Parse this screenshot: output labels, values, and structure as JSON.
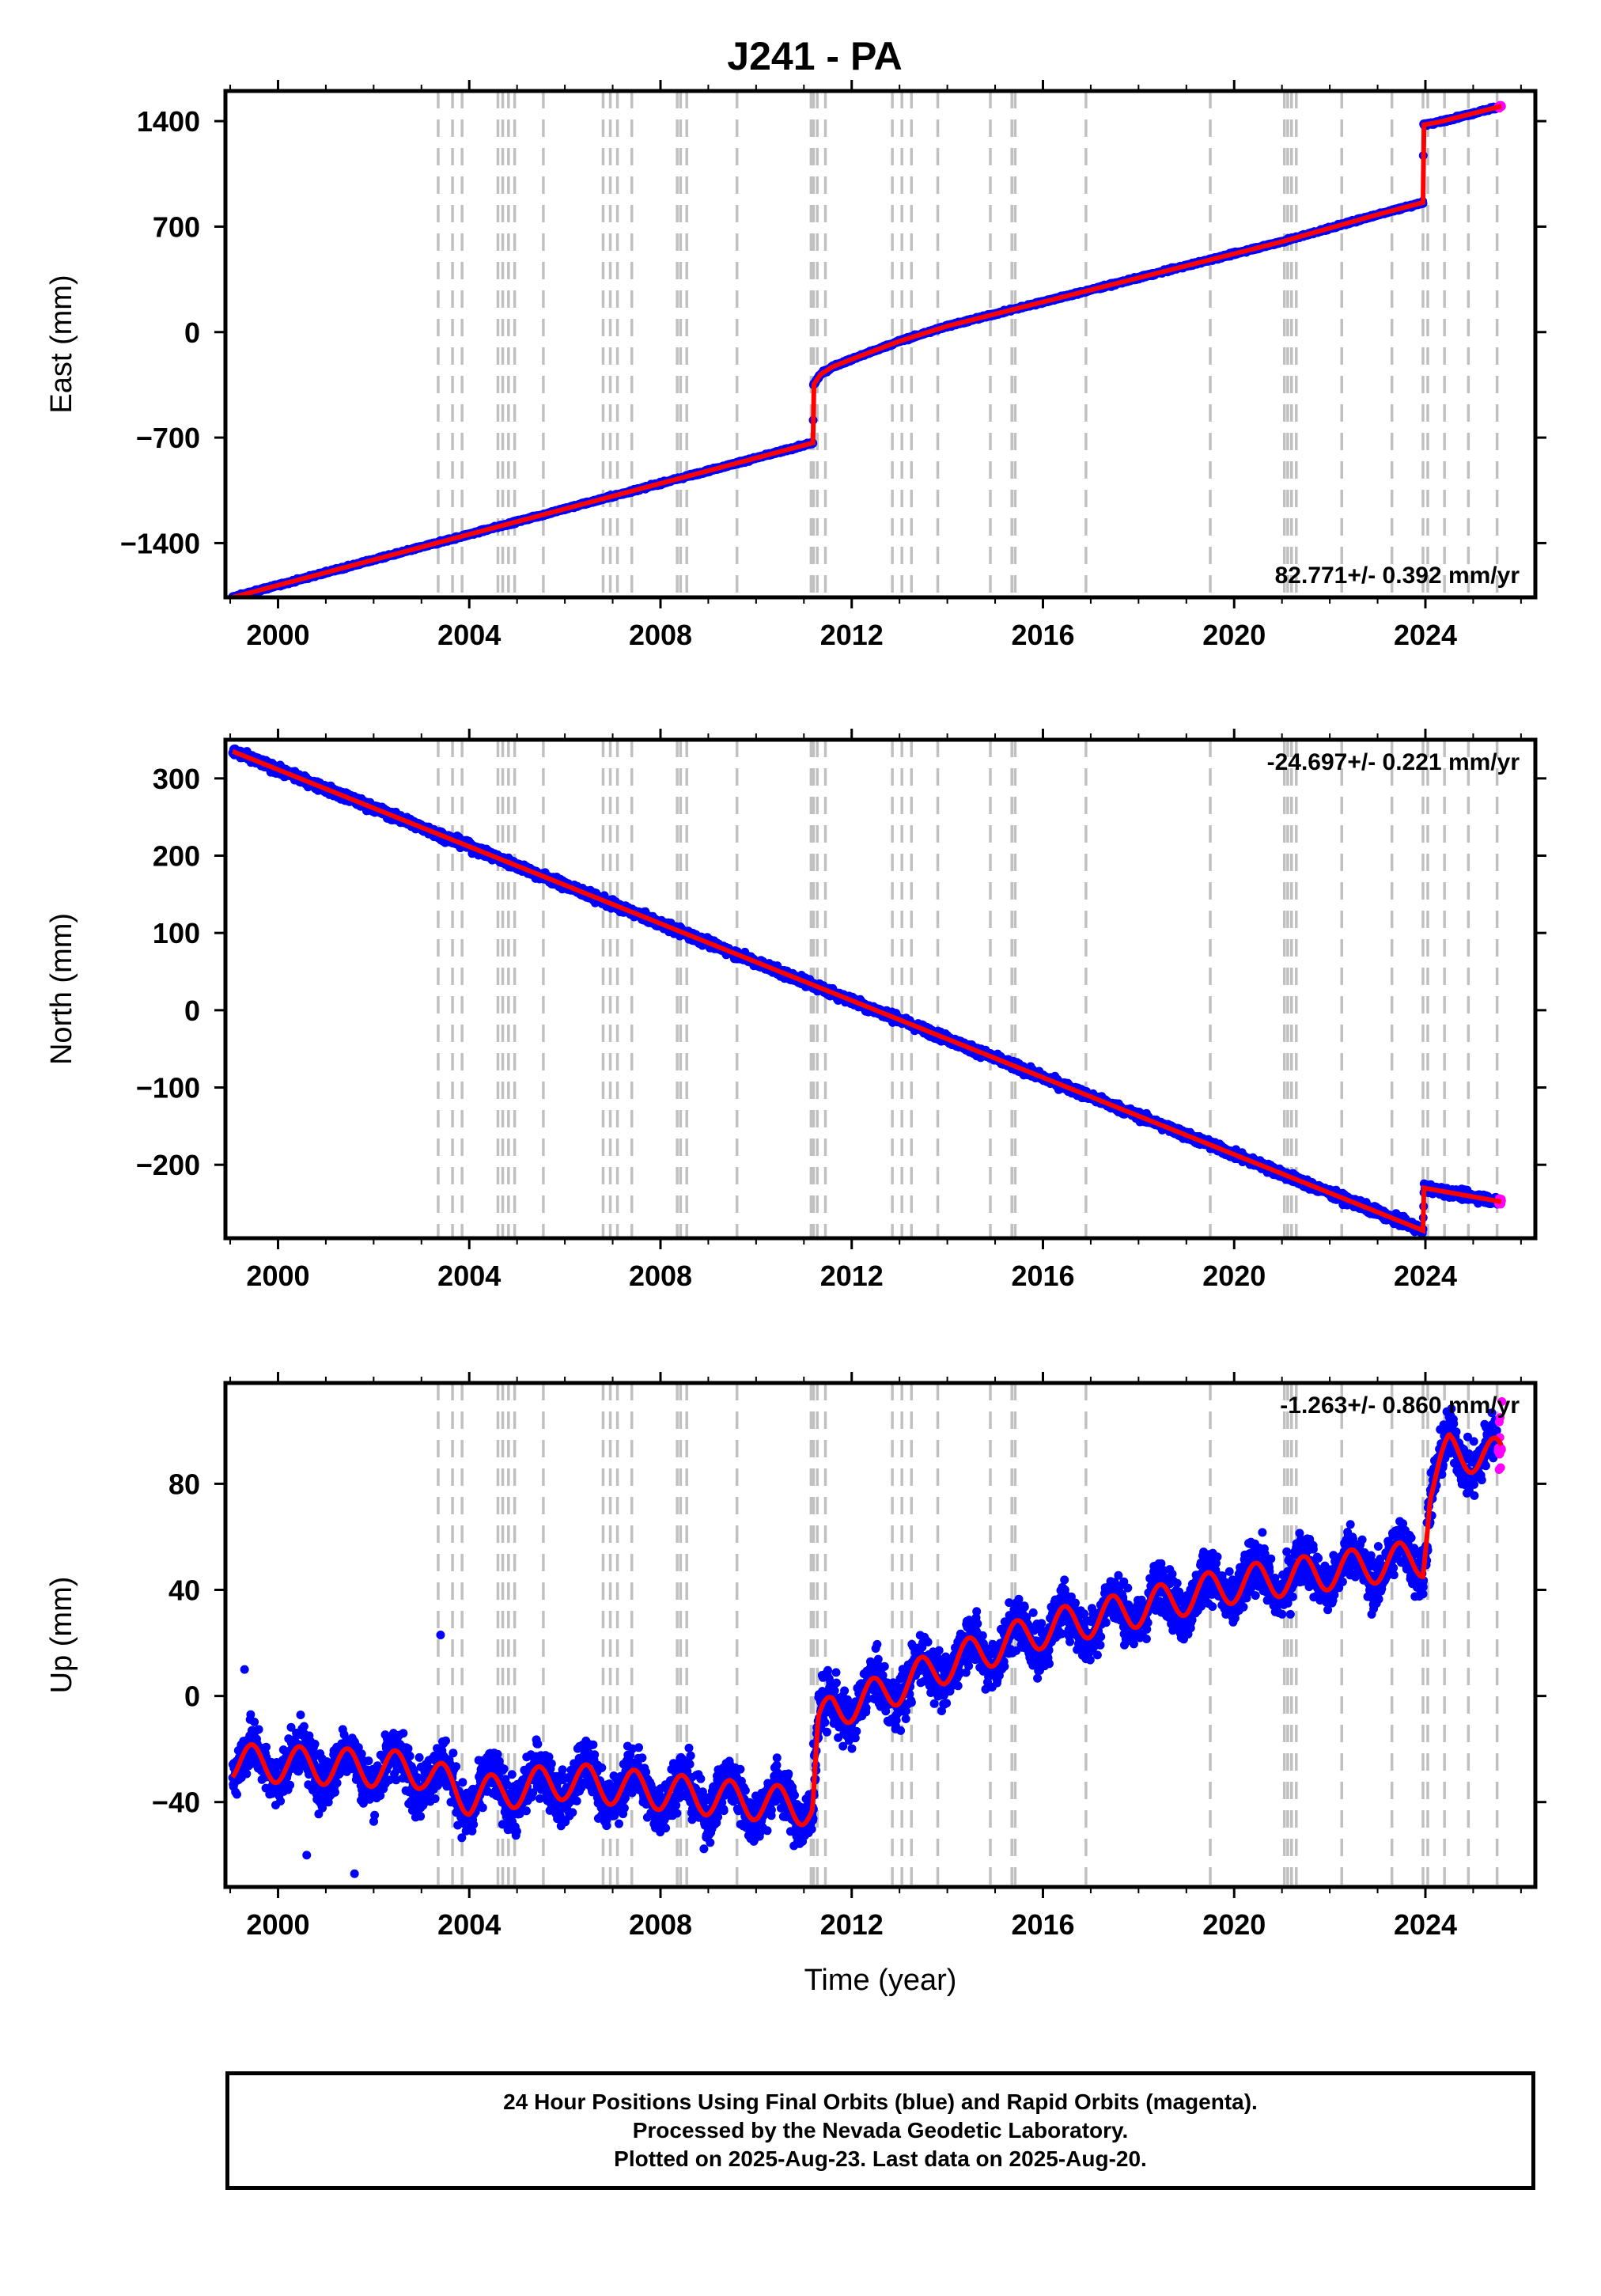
{
  "chart_data": {
    "title": "J241 - PA",
    "xlabel": "Time (year)",
    "x_ticks": [
      2000,
      2004,
      2008,
      2012,
      2016,
      2020,
      2024
    ],
    "x_range": [
      1998.9,
      2026.3
    ],
    "step_events": [
      2003.35,
      2003.65,
      2003.85,
      2004.6,
      2004.7,
      2004.82,
      2004.95,
      2005.55,
      2006.8,
      2006.95,
      2007.1,
      2007.4,
      2008.35,
      2008.42,
      2008.55,
      2009.6,
      2011.15,
      2011.2,
      2011.28,
      2011.45,
      2012.85,
      2013.05,
      2013.25,
      2013.8,
      2014.9,
      2015.35,
      2015.42,
      2016.9,
      2019.5,
      2021.05,
      2021.12,
      2021.2,
      2021.3,
      2022.25,
      2023.3,
      2023.95,
      2024.05,
      2024.4,
      2024.9,
      2025.5
    ],
    "panels": [
      {
        "type": "scatter",
        "name": "east",
        "ylabel": "East (mm)",
        "ylim": [
          -1760,
          1600
        ],
        "y_ticks": [
          -1400,
          -700,
          0,
          700,
          1400
        ],
        "y_tick_labels": [
          "−1400",
          "−700",
          "0",
          "700",
          "1400"
        ],
        "rate": "82.771+/- 0.392 mm/yr",
        "rate_pos": "bottom-right",
        "model_points": [
          [
            1999.05,
            -1760
          ],
          [
            2011.19,
            -735
          ],
          [
            2011.2,
            -350
          ],
          [
            2011.35,
            -280
          ],
          [
            2011.6,
            -230
          ],
          [
            2012.0,
            -180
          ],
          [
            2013.0,
            -60
          ],
          [
            2014.0,
            40
          ],
          [
            2015.0,
            120
          ],
          [
            2016.0,
            200
          ],
          [
            2017.0,
            280
          ],
          [
            2018.0,
            360
          ],
          [
            2019.0,
            440
          ],
          [
            2020.0,
            520
          ],
          [
            2021.0,
            600
          ],
          [
            2022.0,
            690
          ],
          [
            2023.0,
            780
          ],
          [
            2023.95,
            860
          ],
          [
            2023.96,
            1375
          ],
          [
            2024.3,
            1395
          ],
          [
            2025.6,
            1500
          ]
        ],
        "noise_mm": 6
      },
      {
        "type": "scatter",
        "name": "north",
        "ylabel": "North (mm)",
        "ylim": [
          -295,
          350
        ],
        "y_ticks": [
          -200,
          -100,
          0,
          100,
          200,
          300
        ],
        "y_tick_labels": [
          "−200",
          "−100",
          "0",
          "100",
          "200",
          "300"
        ],
        "rate": "-24.697+/- 0.221 mm/yr",
        "rate_pos": "top-right",
        "model_points": [
          [
            1999.05,
            335
          ],
          [
            2023.95,
            -285
          ],
          [
            2023.97,
            -230
          ],
          [
            2025.6,
            -248
          ]
        ],
        "noise_mm": 4
      },
      {
        "type": "scatter",
        "name": "up",
        "ylabel": "Up (mm)",
        "ylim": [
          -72,
          118
        ],
        "y_ticks": [
          -40,
          0,
          40,
          80
        ],
        "y_tick_labels": [
          "−40",
          "0",
          "40",
          "80"
        ],
        "rate": "-1.263+/- 0.860 mm/yr",
        "rate_pos": "top-right",
        "model_points": [
          [
            1999.05,
            -25
          ],
          [
            2003.0,
            -28
          ],
          [
            2004.0,
            -38
          ],
          [
            2006.0,
            -32
          ],
          [
            2009.0,
            -38
          ],
          [
            2011.18,
            -42
          ],
          [
            2011.3,
            -12
          ],
          [
            2011.6,
            -5
          ],
          [
            2012.5,
            0
          ],
          [
            2014.0,
            12
          ],
          [
            2016.0,
            25
          ],
          [
            2018.0,
            33
          ],
          [
            2020.0,
            42
          ],
          [
            2022.0,
            47
          ],
          [
            2023.95,
            52
          ],
          [
            2024.1,
            78
          ],
          [
            2024.5,
            92
          ],
          [
            2025.6,
            90
          ]
        ],
        "annual_amp": 7,
        "noise_mm": 7,
        "outliers": [
          [
            2003.4,
            23
          ],
          [
            2000.6,
            -60
          ],
          [
            2001.6,
            -67
          ],
          [
            1999.3,
            10
          ],
          [
            2011.2,
            -18
          ],
          [
            2025.6,
            111
          ]
        ]
      }
    ]
  },
  "colors": {
    "final_orbits": "#0000ff",
    "rapid_orbits": "#ff00ff",
    "model": "#ff0000",
    "events": "#c0c0c0",
    "frame": "#000000"
  },
  "footer": {
    "line1": "24 Hour Positions Using Final Orbits (blue) and Rapid Orbits (magenta).",
    "line2": "Processed by the Nevada Geodetic Laboratory.",
    "line3": "Plotted on 2025-Aug-23. Last data on 2025-Aug-20."
  }
}
